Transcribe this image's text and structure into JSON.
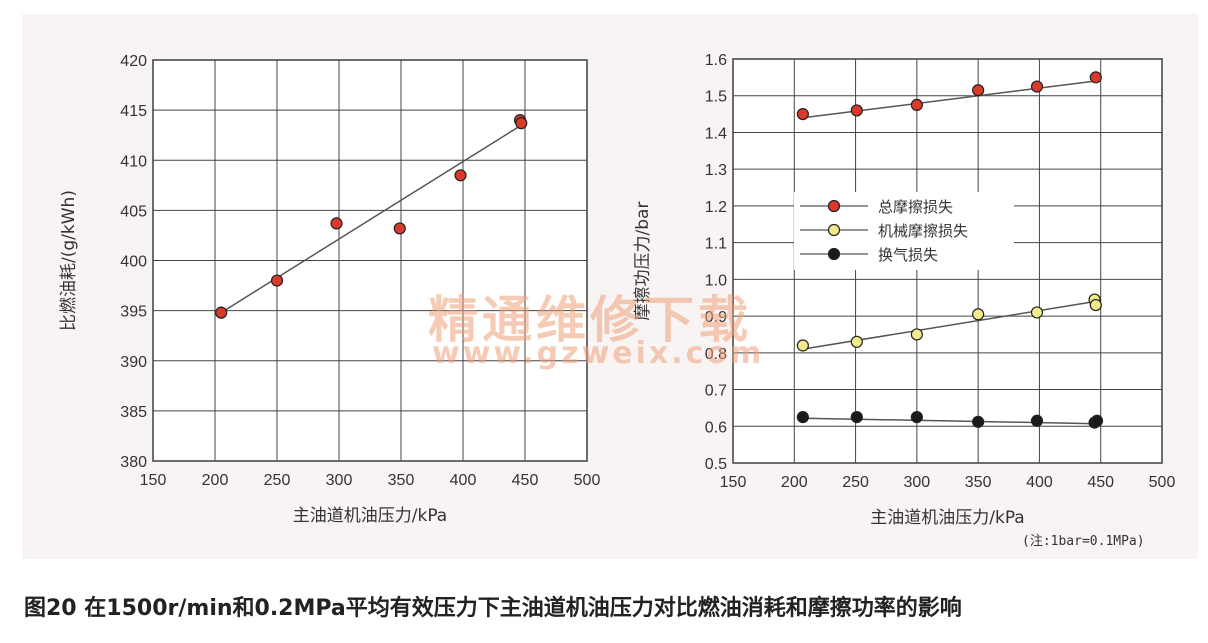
{
  "chart_data": [
    {
      "type": "scatter",
      "xlabel": "主油道机油压力/kPa",
      "ylabel": "比燃油耗/(g/kWh)",
      "xlim": [
        150,
        500
      ],
      "ylim": [
        380,
        420
      ],
      "xticks": [
        "150",
        "200",
        "250",
        "300",
        "350",
        "400",
        "450",
        "500"
      ],
      "yticks": [
        "380",
        "385",
        "390",
        "395",
        "400",
        "405",
        "410",
        "415",
        "420"
      ],
      "grid": true,
      "series": [
        {
          "color": "#d93a2b",
          "x": [
            205,
            250,
            298,
            349,
            398,
            446,
            447
          ],
          "y": [
            394.8,
            398.0,
            403.7,
            403.2,
            408.5,
            414.0,
            413.7
          ],
          "fit": [
            [
              205,
              394.8
            ],
            [
              447,
              413.5
            ]
          ]
        }
      ]
    },
    {
      "type": "scatter",
      "xlabel": "主油道机油压力/kPa",
      "ylabel": "摩擦功压力/bar",
      "xlim": [
        150,
        500
      ],
      "ylim": [
        0.5,
        1.6
      ],
      "xticks": [
        "150",
        "200",
        "250",
        "300",
        "350",
        "400",
        "450",
        "500"
      ],
      "yticks": [
        "0.5",
        "0.6",
        "0.7",
        "0.8",
        "0.9",
        "1.0",
        "1.1",
        "1.2",
        "1.3",
        "1.4",
        "1.5",
        "1.6"
      ],
      "grid": true,
      "legend_position": "center-left",
      "series": [
        {
          "name": "总摩擦损失",
          "color": "#d93a2b",
          "x": [
            207,
            251,
            300,
            350,
            398,
            446
          ],
          "y": [
            1.45,
            1.46,
            1.475,
            1.515,
            1.525,
            1.55
          ],
          "fit": [
            [
              207,
              1.44
            ],
            [
              446,
              1.54
            ]
          ]
        },
        {
          "name": "机械摩擦损失",
          "color": "#f2eb8c",
          "x": [
            207,
            251,
            300,
            350,
            398,
            445,
            446
          ],
          "y": [
            0.82,
            0.83,
            0.85,
            0.905,
            0.91,
            0.945,
            0.93
          ],
          "fit": [
            [
              207,
              0.81
            ],
            [
              446,
              0.94
            ]
          ]
        },
        {
          "name": "换气损失",
          "color": "#1a1a1a",
          "x": [
            207,
            251,
            300,
            350,
            398,
            445,
            447
          ],
          "y": [
            0.625,
            0.625,
            0.625,
            0.612,
            0.615,
            0.61,
            0.615
          ],
          "fit": [
            [
              207,
              0.622
            ],
            [
              447,
              0.607
            ]
          ]
        }
      ]
    }
  ],
  "note": "(注:1bar=0.1MPa)",
  "watermark": {
    "cn": "精通维修下载",
    "url": "www.gzweix.com"
  },
  "caption": "图20 在1500r/min和0.2MPa平均有效压力下主油道机油压力对比燃油消耗和摩擦功率的影响"
}
